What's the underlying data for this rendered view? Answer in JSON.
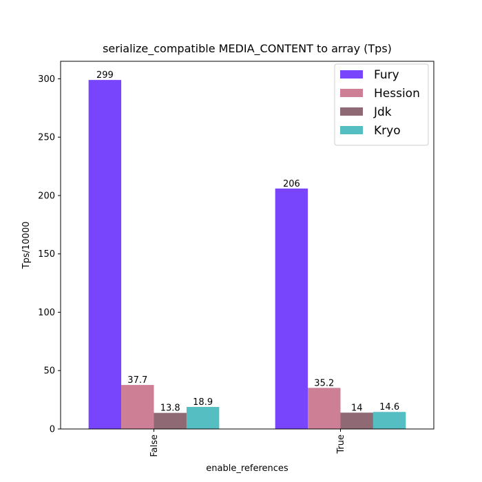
{
  "chart_data": {
    "type": "bar",
    "title": "serialize_compatible MEDIA_CONTENT to array (Tps)",
    "xlabel": "enable_references",
    "ylabel": "Tps/10000",
    "categories": [
      "False",
      "True"
    ],
    "series": [
      {
        "name": "Fury",
        "values": [
          299,
          206
        ],
        "labels": [
          "299",
          "206"
        ],
        "color": "#7845fd"
      },
      {
        "name": "Hession",
        "values": [
          37.7,
          35.2
        ],
        "labels": [
          "37.7",
          "35.2"
        ],
        "color": "#cc7f95"
      },
      {
        "name": "Jdk",
        "values": [
          13.8,
          14
        ],
        "labels": [
          "13.8",
          "14"
        ],
        "color": "#8f6a74"
      },
      {
        "name": "Kryo",
        "values": [
          18.9,
          14.6
        ],
        "labels": [
          "18.9",
          "14.6"
        ],
        "color": "#55bec2"
      }
    ],
    "ylim": [
      0,
      315
    ],
    "yticks": [
      0,
      50,
      100,
      150,
      200,
      250,
      300
    ],
    "grid": false,
    "legend_position": "top-right"
  }
}
